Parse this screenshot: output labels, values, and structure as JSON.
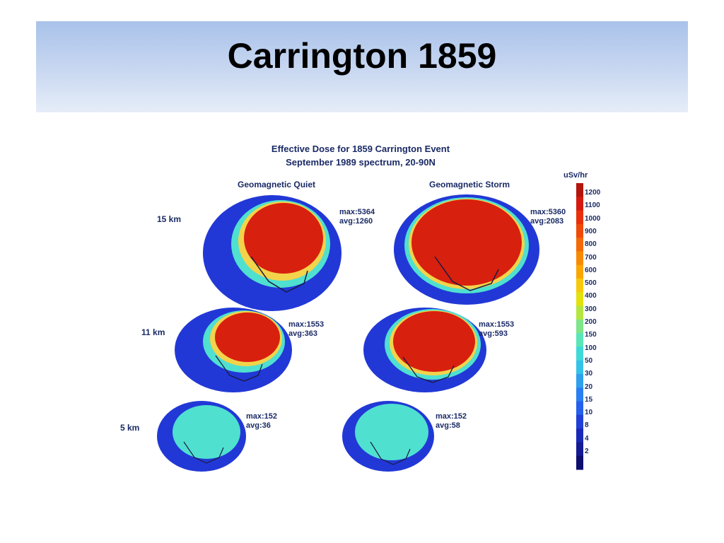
{
  "slide": {
    "title": "Carrington 1859"
  },
  "figure": {
    "title": "Effective Dose for 1859 Carrington Event",
    "subtitle": "September 1989 spectrum, 20-90N",
    "columns": [
      "Geomagnetic Quiet",
      "Geomagnetic Storm"
    ],
    "rows": [
      {
        "altitude": "15 km",
        "quiet": {
          "max": "max:5364",
          "avg": "avg:1260"
        },
        "storm": {
          "max": "max:5360",
          "avg": "avg:2083"
        }
      },
      {
        "altitude": "11 km",
        "quiet": {
          "max": "max:1553",
          "avg": "avg:363"
        },
        "storm": {
          "max": "max:1553",
          "avg": "avg:593"
        }
      },
      {
        "altitude": "5 km",
        "quiet": {
          "max": "max:152",
          "avg": "avg:36"
        },
        "storm": {
          "max": "max:152",
          "avg": "avg:58"
        }
      }
    ],
    "colorbar": {
      "unit": "uSv/hr",
      "ticks": [
        "1200",
        "1100",
        "1000",
        "900",
        "800",
        "700",
        "600",
        "500",
        "400",
        "300",
        "200",
        "150",
        "100",
        "50",
        "30",
        "20",
        "15",
        "10",
        "8",
        "4",
        "2"
      ],
      "colors": [
        "#b3140c",
        "#d41a0e",
        "#e8300a",
        "#f04a08",
        "#f36a06",
        "#f78a04",
        "#faa704",
        "#f7c90a",
        "#e3e20e",
        "#b5e640",
        "#7fe58a",
        "#5ae6b8",
        "#3fd9d8",
        "#36c2e8",
        "#2fa0ee",
        "#2a7ff0",
        "#2560ec",
        "#2040d8",
        "#1a28b8",
        "#141a94",
        "#0e0e6e"
      ]
    },
    "globe_colors": {
      "ocean": "#2238d6",
      "low": "#4fe0d0",
      "mid": "#f3d34a",
      "high": "#d8200e",
      "coast": "#1a1a40"
    }
  }
}
